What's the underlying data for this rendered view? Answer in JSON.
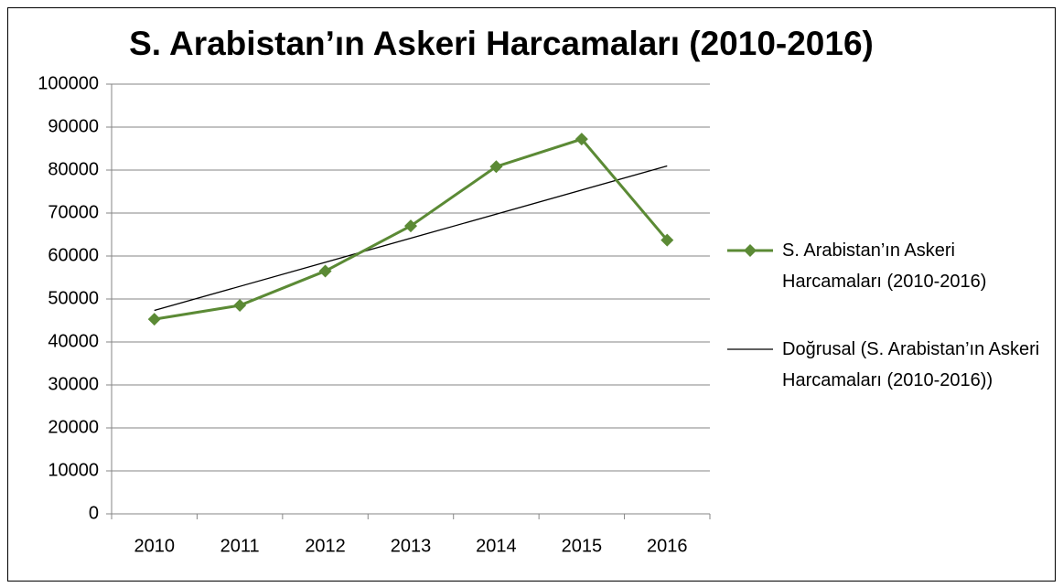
{
  "chart_data": {
    "type": "line",
    "title": "S. Arabistan’ın Askeri Harcamaları (2010-2016)",
    "categories": [
      "2010",
      "2011",
      "2012",
      "2013",
      "2014",
      "2015",
      "2016"
    ],
    "series": [
      {
        "name": "S. Arabistan’ın Askeri Harcamaları (2010-2016)",
        "color": "#5b8a35",
        "values": [
          45300,
          48500,
          56500,
          67000,
          80800,
          87200,
          63700
        ]
      }
    ],
    "trendline": {
      "name": "Doğrusal (S. Arabistan’ın Askeri Harcamaları (2010-2016))",
      "color": "#000000"
    },
    "ylim": [
      0,
      100000
    ],
    "yticks": [
      0,
      10000,
      20000,
      30000,
      40000,
      50000,
      60000,
      70000,
      80000,
      90000,
      100000
    ],
    "grid": true,
    "legend": "right"
  }
}
